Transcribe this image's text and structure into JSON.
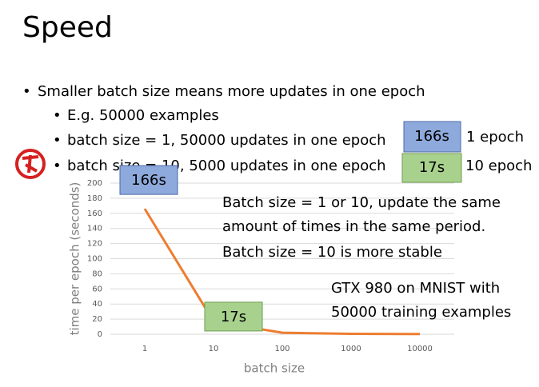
{
  "slide": {
    "title": "Speed",
    "bullets": [
      "Smaller batch size means more updates in one epoch",
      "E.g. 50000 examples",
      "batch size = 1, 50000 updates in one epoch",
      "batch size = 10, 5000 updates in one epoch"
    ],
    "epoch_boxes": [
      {
        "time": "166s",
        "label": "1 epoch"
      },
      {
        "time": "17s",
        "label": "10 epoch"
      }
    ],
    "notes": [
      "Batch size = 1 or 10, update the same",
      "amount of times in the same period.",
      "Batch size = 10 is more stable",
      "GTX 980 on MNIST with",
      "50000 training examples"
    ]
  },
  "chart_data": {
    "type": "line",
    "x_label": "batch size",
    "y_label": "time per epoch (seconds)",
    "categories": [
      "1",
      "10",
      "100",
      "1000",
      "10000"
    ],
    "values": [
      166,
      17,
      2,
      0.5,
      0.2
    ],
    "value_labels": [
      "166s",
      "17s",
      null,
      null,
      null
    ],
    "color": "#ed7d31",
    "ylim": [
      0,
      200
    ],
    "yticks": [
      0,
      20,
      40,
      60,
      80,
      100,
      120,
      140,
      160,
      180,
      200
    ],
    "grid": true
  }
}
